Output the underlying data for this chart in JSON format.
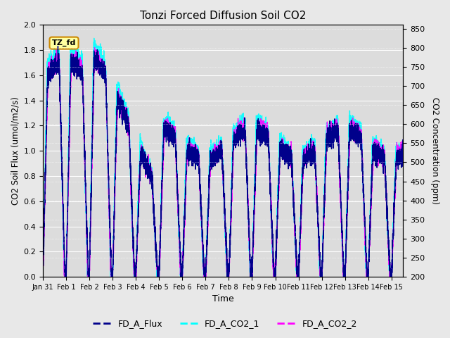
{
  "title": "Tonzi Forced Diffusion Soil CO2",
  "xlabel": "Time",
  "ylabel_left": "CO2 Soil Flux (umol/m2/s)",
  "ylabel_right": "CO2 Concentration (ppm)",
  "flux_color": "#00008B",
  "co2_1_color": "#00FFFF",
  "co2_2_color": "#FF00FF",
  "flux_lw": 1.0,
  "co2_lw": 1.0,
  "ylim_left": [
    0.0,
    2.0
  ],
  "ylim_right": [
    200,
    860
  ],
  "bg_color": "#E8E8E8",
  "plot_bg": "#DCDCDC",
  "legend_labels": [
    "FD_A_Flux",
    "FD_A_CO2_1",
    "FD_A_CO2_2"
  ],
  "annotation_text": "TZ_fd",
  "tick_dates": [
    "Jan 31",
    "Feb 1",
    "Feb 2",
    "Feb 3",
    "Feb 4",
    "Feb 5",
    "Feb 6",
    "Feb 7",
    "Feb 8",
    "Feb 9",
    "Feb 10",
    "Feb 11",
    "Feb 12",
    "Feb 13",
    "Feb 14",
    "Feb 15"
  ],
  "tick_positions": [
    0,
    1,
    2,
    3,
    4,
    5,
    6,
    7,
    8,
    9,
    10,
    11,
    12,
    13,
    14,
    15
  ],
  "left_yticks": [
    0.0,
    0.2,
    0.4,
    0.6,
    0.8,
    1.0,
    1.2,
    1.4,
    1.6,
    1.8,
    2.0
  ],
  "right_yticks": [
    200,
    250,
    300,
    350,
    400,
    450,
    500,
    550,
    600,
    650,
    700,
    750,
    800,
    850
  ]
}
